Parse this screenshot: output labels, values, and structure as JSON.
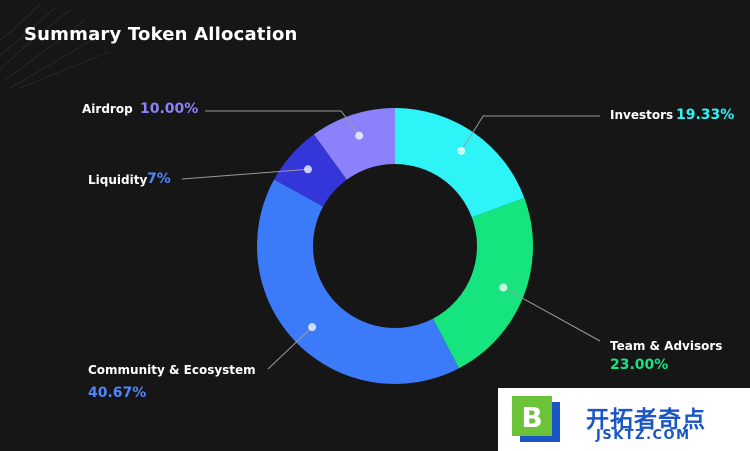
{
  "page": {
    "title": "Summary Token Allocation"
  },
  "chart_data": {
    "type": "pie",
    "title": "Summary Token Allocation",
    "slices": [
      {
        "name": "Investors",
        "value_label": "19.33%",
        "value": 19.33,
        "color": "#2ef3f7"
      },
      {
        "name": "Team & Advisors",
        "value_label": "23.00%",
        "value": 23.0,
        "color": "#16e57f"
      },
      {
        "name": "Community & Ecosystem",
        "value_label": "40.67%",
        "value": 40.67,
        "color": "#3b7bfa"
      },
      {
        "name": "Liquidity",
        "value_label": "7%",
        "value": 7.0,
        "color": "#3436d9"
      },
      {
        "name": "Airdrop",
        "value_label": "10.00%",
        "value": 10.0,
        "color": "#8b82fb"
      }
    ],
    "value_colors": {
      "Investors": "#2ef3f7",
      "Team & Advisors": "#16e57f",
      "Community & Ecosystem": "#4f86ff",
      "Liquidity": "#4f86ff",
      "Airdrop": "#8b82fb"
    }
  },
  "watermark": {
    "text": "开拓者奇点",
    "url": "JSKTZ.COM",
    "logo_letter": "B"
  }
}
